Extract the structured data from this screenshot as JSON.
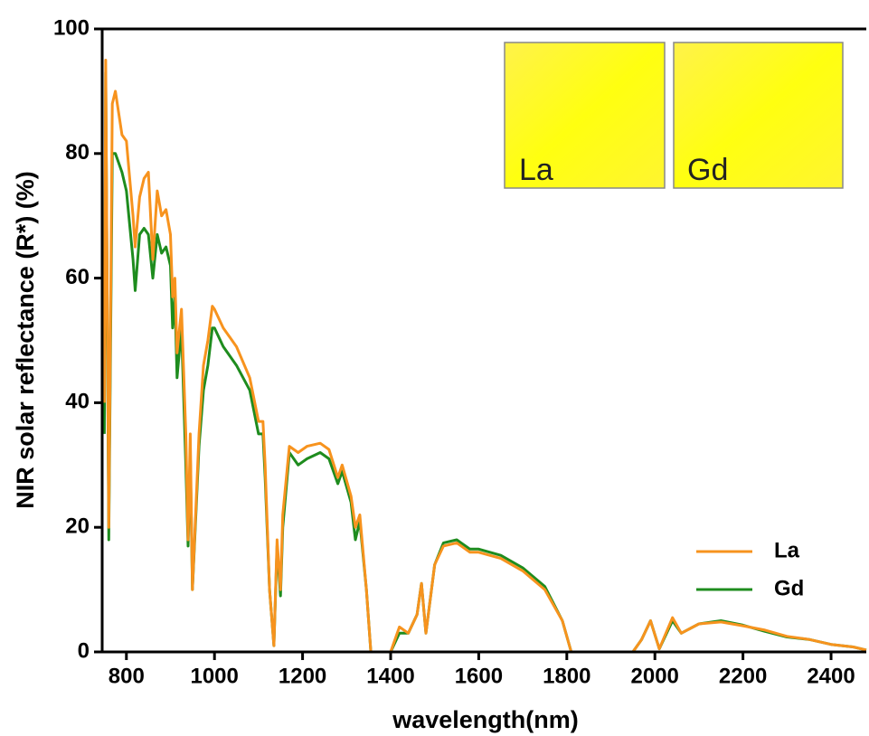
{
  "chart_data": {
    "type": "line",
    "x_label": "wavelength(nm)",
    "y_label": "NIR solar reflectance (R*) (%)",
    "x": [
      750,
      753,
      760,
      768,
      775,
      790,
      800,
      815,
      820,
      830,
      840,
      850,
      860,
      870,
      880,
      890,
      900,
      905,
      910,
      915,
      925,
      935,
      940,
      945,
      950,
      965,
      975,
      985,
      995,
      1000,
      1020,
      1050,
      1080,
      1100,
      1110,
      1115,
      1125,
      1135,
      1142,
      1150,
      1155,
      1170,
      1190,
      1210,
      1240,
      1260,
      1280,
      1290,
      1310,
      1320,
      1330,
      1345,
      1355,
      1400,
      1420,
      1440,
      1460,
      1470,
      1480,
      1500,
      1520,
      1550,
      1580,
      1600,
      1650,
      1700,
      1750,
      1790,
      1810,
      1950,
      1970,
      1990,
      2010,
      2040,
      2060,
      2100,
      2150,
      2200,
      2250,
      2300,
      2350,
      2400,
      2450,
      2480
    ],
    "series": [
      {
        "name": "La",
        "color": "#f7931e",
        "values": [
          40,
          95,
          20,
          88,
          90,
          83,
          82,
          70,
          65,
          73,
          76,
          77,
          63,
          74,
          70,
          71,
          67,
          57,
          60,
          48,
          55,
          35,
          18,
          35,
          10,
          35,
          46,
          50,
          55.5,
          55,
          52,
          49,
          44,
          37,
          37,
          30,
          10,
          1,
          18,
          10,
          22,
          33,
          32,
          33,
          33.5,
          32.5,
          28,
          30,
          25,
          20,
          22,
          10,
          0,
          0,
          4,
          3,
          6,
          11,
          3,
          14,
          17,
          17.5,
          16,
          16,
          15,
          13,
          10,
          5,
          0,
          0,
          2,
          5,
          0.5,
          5.5,
          3,
          4.5,
          4.8,
          4.2,
          3.5,
          2.5,
          2,
          1.2,
          0.8,
          0.3
        ]
      },
      {
        "name": "Gd",
        "color": "#1e8c1e",
        "values": [
          35,
          93,
          18,
          80,
          80,
          77,
          74,
          63,
          58,
          67,
          68,
          67,
          60,
          67,
          64,
          65,
          62,
          52,
          57,
          44,
          52,
          30,
          17,
          32,
          10,
          33,
          42,
          46,
          52,
          52,
          49,
          46,
          42,
          35,
          35,
          28,
          10,
          1,
          17,
          9,
          20,
          32,
          30,
          31,
          32,
          31,
          27,
          29,
          24,
          18,
          21,
          10,
          0,
          0,
          3,
          3,
          6,
          11,
          3,
          14,
          17.5,
          18,
          16.5,
          16.5,
          15.5,
          13.5,
          10.5,
          5,
          0,
          0,
          2,
          5,
          0.5,
          5,
          3,
          4.5,
          5,
          4.3,
          3.3,
          2.4,
          2,
          1.2,
          0.8,
          0.3
        ]
      }
    ],
    "xlim": [
      745,
      2480
    ],
    "ylim": [
      0,
      100
    ],
    "xticks": [
      800,
      1000,
      1200,
      1400,
      1600,
      1800,
      2000,
      2200,
      2400
    ],
    "yticks": [
      0,
      20,
      40,
      60,
      80,
      100
    ],
    "legend": "lower right",
    "inset_labels": [
      "La",
      "Gd"
    ]
  }
}
